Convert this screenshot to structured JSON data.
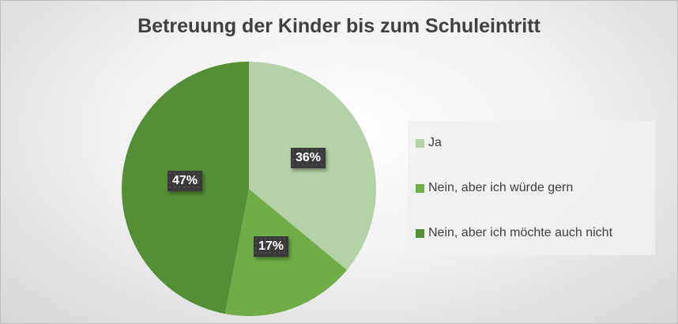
{
  "chart_data": {
    "type": "pie",
    "title": "Betreuung der Kinder bis zum Schuleintritt",
    "categories": [
      "Ja",
      "Nein, aber ich würde gern",
      "Nein, aber ich möchte auch nicht"
    ],
    "values": [
      36,
      17,
      47
    ],
    "data_labels": [
      "36%",
      "17%",
      "47%"
    ],
    "colors": [
      "#B5D1A8",
      "#70AD47",
      "#548F35"
    ],
    "start_angle": "top, clockwise",
    "legend": "right"
  }
}
